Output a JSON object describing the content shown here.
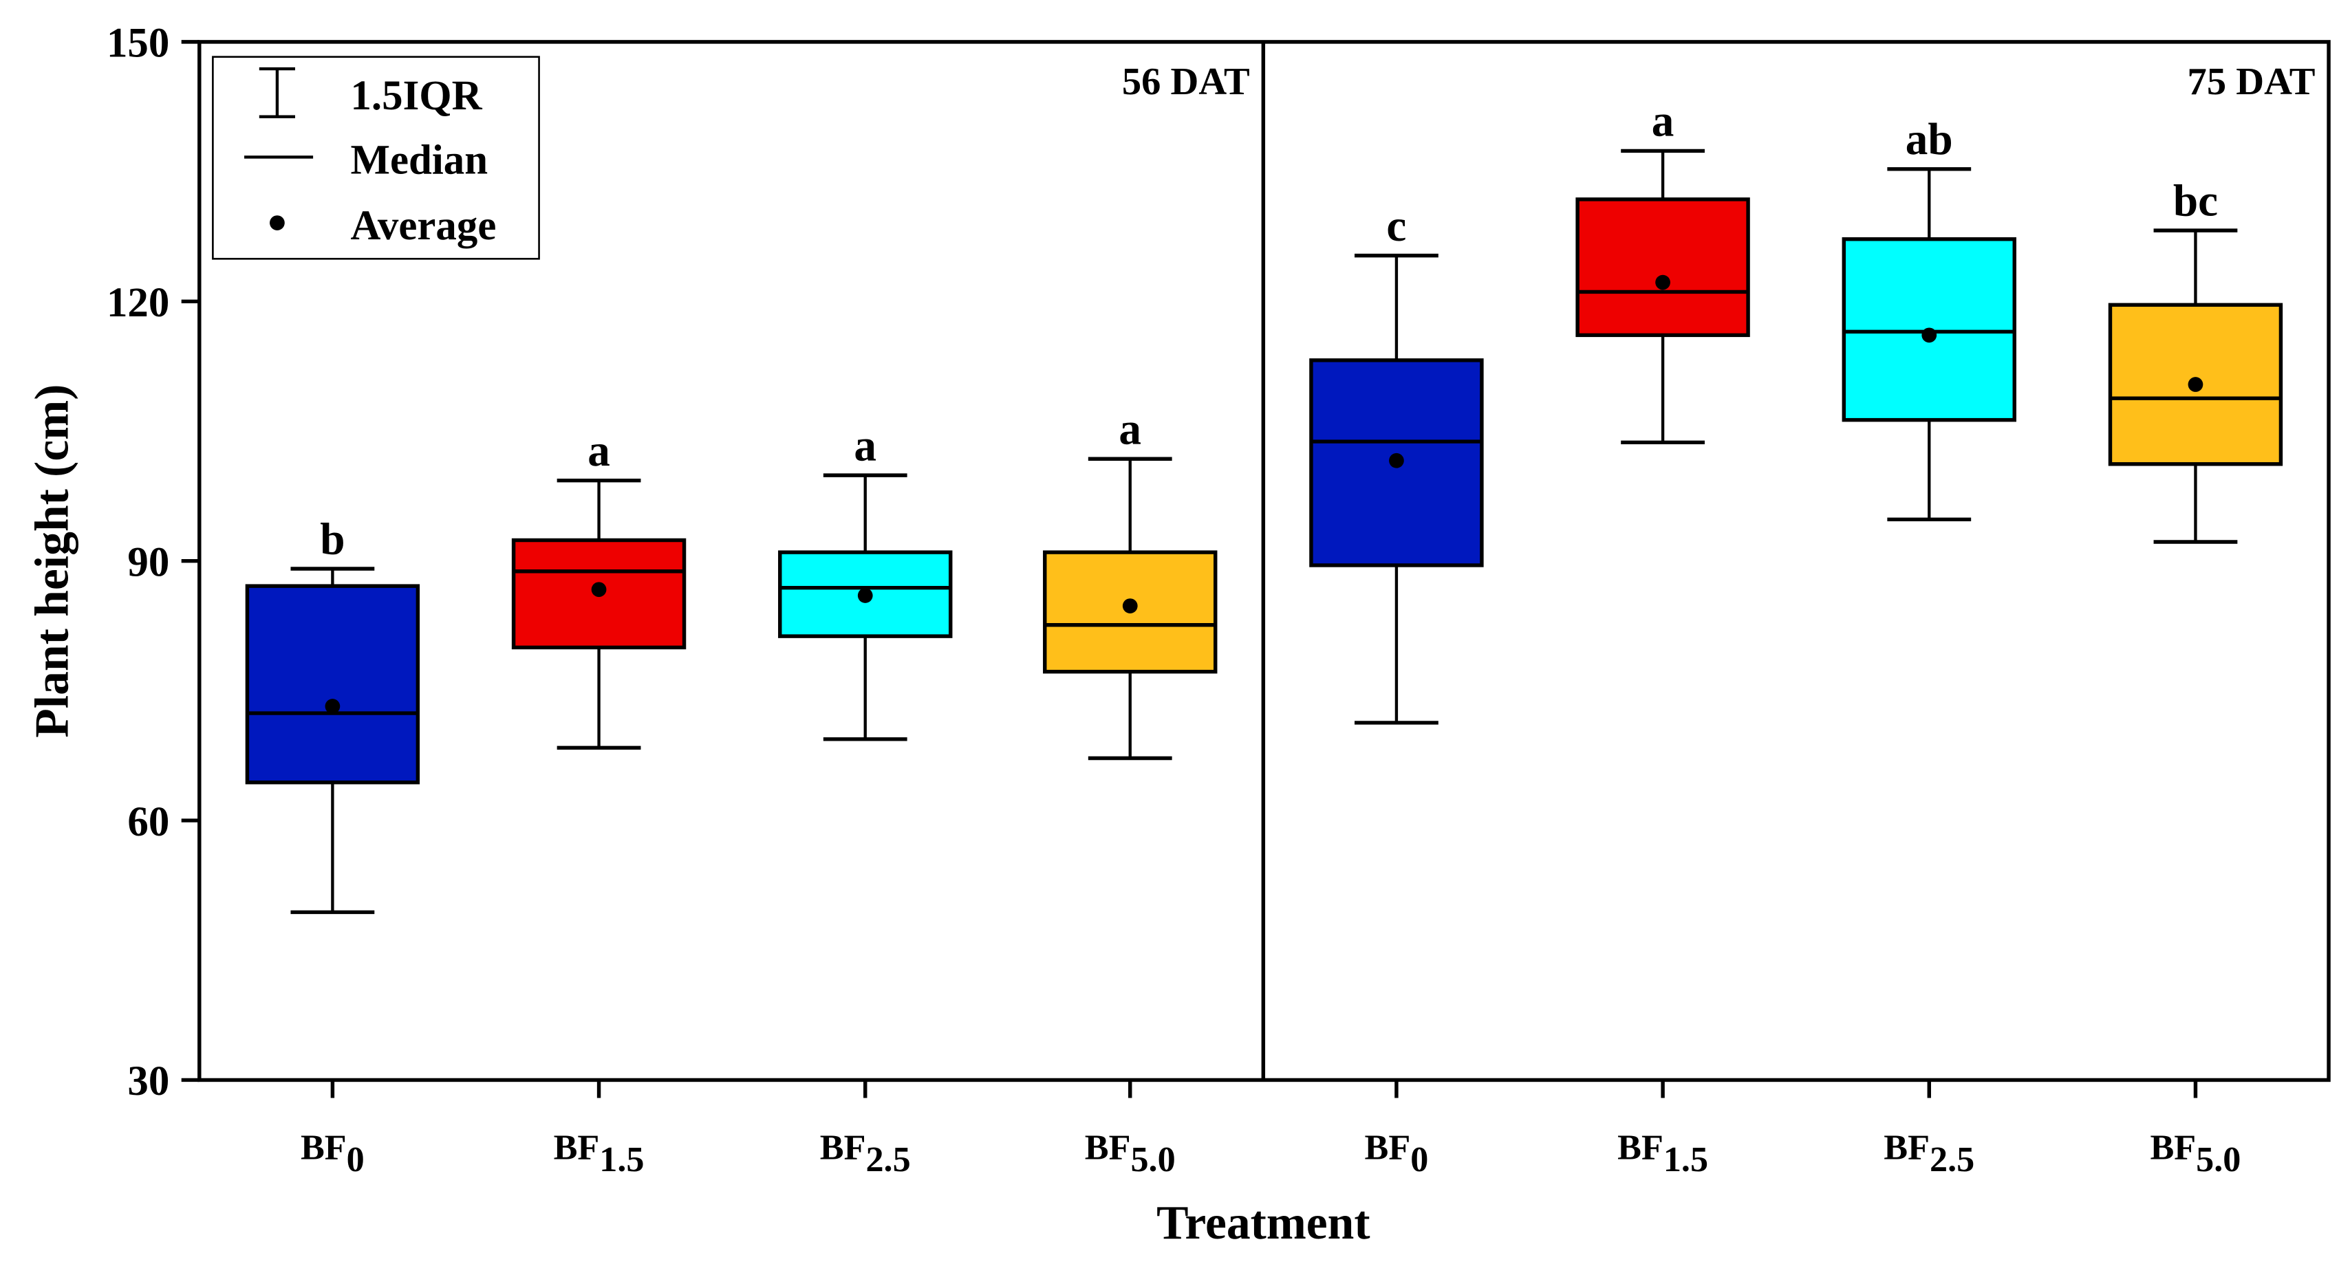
{
  "chart_data": {
    "type": "box",
    "ylabel": "Plant height (cm)",
    "xlabel": "Treatment",
    "ylim": [
      30,
      150
    ],
    "yticks": [
      "30",
      "60",
      "90",
      "120",
      "150"
    ],
    "legend": {
      "placement": "top-left",
      "items": [
        {
          "symbol": "whisker",
          "label": "1.5IQR"
        },
        {
          "symbol": "line",
          "label": "Median"
        },
        {
          "symbol": "dot",
          "label": "Average"
        }
      ]
    },
    "colors": {
      "BF0": "#0018be",
      "BF1.5": "#ee0000",
      "BF2.5": "#00ffff",
      "BF5.0": "#ffbf1a"
    },
    "panels": [
      {
        "title": "56 DAT",
        "groups": [
          {
            "key": "BF0",
            "base": "BF",
            "sub": "0",
            "letter": "b",
            "min": 49.4,
            "q1": 64.4,
            "median": 72.4,
            "mean": 73.2,
            "q3": 87.1,
            "max": 89.1
          },
          {
            "key": "BF1.5",
            "base": "BF",
            "sub": "1.5",
            "letter": "a",
            "min": 68.4,
            "q1": 80.0,
            "median": 88.8,
            "mean": 86.7,
            "q3": 92.4,
            "max": 99.3
          },
          {
            "key": "BF2.5",
            "base": "BF",
            "sub": "2.5",
            "letter": "a",
            "min": 69.4,
            "q1": 81.3,
            "median": 86.9,
            "mean": 86.0,
            "q3": 91.0,
            "max": 99.9
          },
          {
            "key": "BF5.0",
            "base": "BF",
            "sub": "5.0",
            "letter": "a",
            "min": 67.2,
            "q1": 77.2,
            "median": 82.6,
            "mean": 84.8,
            "q3": 91.0,
            "max": 101.8
          }
        ]
      },
      {
        "title": "75 DAT",
        "groups": [
          {
            "key": "BF0",
            "base": "BF",
            "sub": "0",
            "letter": "c",
            "min": 71.3,
            "q1": 89.5,
            "median": 103.8,
            "mean": 101.6,
            "q3": 113.2,
            "max": 125.3
          },
          {
            "key": "BF1.5",
            "base": "BF",
            "sub": "1.5",
            "letter": "a",
            "min": 103.7,
            "q1": 116.1,
            "median": 121.1,
            "mean": 122.2,
            "q3": 131.8,
            "max": 137.4
          },
          {
            "key": "BF2.5",
            "base": "BF",
            "sub": "2.5",
            "letter": "ab",
            "min": 94.8,
            "q1": 106.3,
            "median": 116.5,
            "mean": 116.1,
            "q3": 127.2,
            "max": 135.3
          },
          {
            "key": "BF5.0",
            "base": "BF",
            "sub": "5.0",
            "letter": "bc",
            "min": 92.2,
            "q1": 101.2,
            "median": 108.8,
            "mean": 110.4,
            "q3": 119.6,
            "max": 128.2
          }
        ]
      }
    ]
  }
}
